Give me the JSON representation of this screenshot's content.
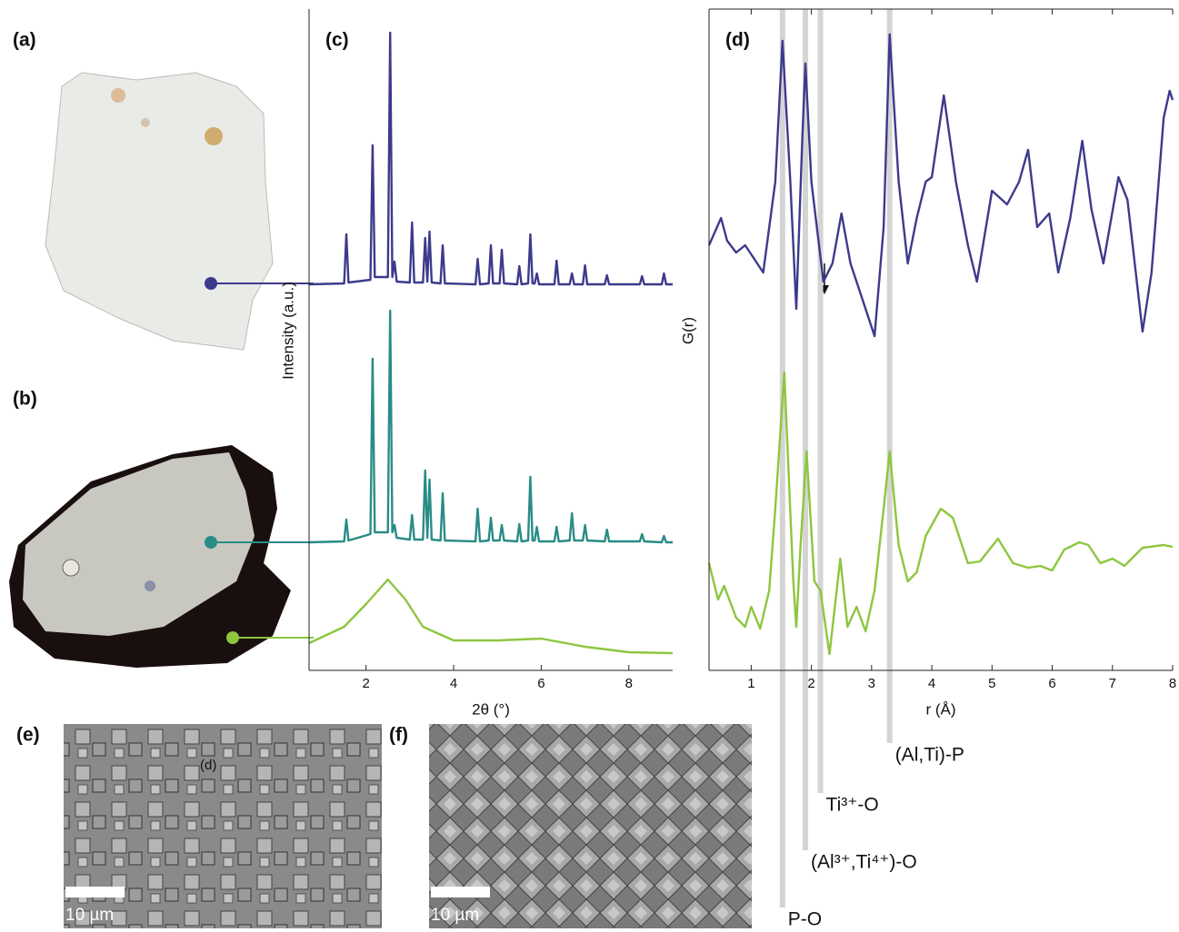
{
  "panel_labels": {
    "a": "(a)",
    "b": "(b)",
    "e": "(e)",
    "f": "(f)"
  },
  "sem": {
    "scale_bar_e": "10 µm",
    "scale_bar_f": "10 µm",
    "overlay_label": "(d)"
  },
  "chart_data": [
    {
      "type": "line",
      "label": "(c)",
      "x_label": "2θ (°)",
      "y_label": "Intensity (a.u.)",
      "xlim": [
        0.7,
        9
      ],
      "ylim": [
        0,
        728
      ],
      "xticks": [
        2,
        4,
        6,
        8
      ],
      "series": [
        {
          "color": "#3d3a8c",
          "x": [
            0.7,
            1.5,
            1.55,
            1.6,
            2.1,
            2.15,
            2.2,
            2.5,
            2.55,
            2.6,
            2.65,
            2.7,
            3.0,
            3.05,
            3.1,
            3.3,
            3.35,
            3.4,
            3.45,
            3.5,
            3.7,
            3.75,
            3.8,
            4.5,
            4.55,
            4.6,
            4.8,
            4.85,
            4.9,
            5.05,
            5.1,
            5.15,
            5.45,
            5.5,
            5.55,
            5.7,
            5.75,
            5.8,
            5.85,
            5.9,
            5.95,
            6.3,
            6.35,
            6.4,
            6.65,
            6.7,
            6.75,
            6.95,
            7.0,
            7.05,
            7.45,
            7.5,
            7.55,
            8.25,
            8.3,
            8.35,
            8.75,
            8.8,
            8.85,
            9.0
          ],
          "values": [
            425,
            426,
            480,
            427,
            430,
            578,
            433,
            433,
            702,
            433,
            450,
            428,
            427,
            493,
            427,
            427,
            476,
            428,
            483,
            427,
            426,
            468,
            426,
            425,
            453,
            425,
            426,
            468,
            426,
            426,
            463,
            426,
            425,
            445,
            425,
            426,
            480,
            426,
            426,
            437,
            425,
            425,
            451,
            425,
            425,
            437,
            425,
            425,
            446,
            425,
            425,
            435,
            425,
            425,
            434,
            425,
            425,
            437,
            425,
            425
          ]
        },
        {
          "color": "#2a8c86",
          "x": [
            0.7,
            1.5,
            1.55,
            1.6,
            2.1,
            2.15,
            2.2,
            2.5,
            2.55,
            2.6,
            2.65,
            2.7,
            3.0,
            3.05,
            3.1,
            3.3,
            3.35,
            3.4,
            3.45,
            3.5,
            3.7,
            3.75,
            3.8,
            4.5,
            4.55,
            4.6,
            4.8,
            4.85,
            4.9,
            5.05,
            5.1,
            5.15,
            5.45,
            5.5,
            5.55,
            5.7,
            5.75,
            5.8,
            5.85,
            5.9,
            5.95,
            6.3,
            6.35,
            6.4,
            6.65,
            6.7,
            6.75,
            6.95,
            7.0,
            7.05,
            7.45,
            7.5,
            7.55,
            8.25,
            8.3,
            8.35,
            8.75,
            8.8,
            8.85,
            9.0
          ],
          "values": [
            141,
            142,
            166,
            143,
            150,
            343,
            152,
            152,
            396,
            152,
            160,
            146,
            144,
            171,
            144,
            144,
            220,
            146,
            210,
            144,
            143,
            195,
            143,
            142,
            178,
            142,
            143,
            168,
            143,
            143,
            160,
            143,
            142,
            161,
            142,
            143,
            213,
            143,
            143,
            158,
            142,
            142,
            158,
            142,
            143,
            173,
            143,
            143,
            160,
            143,
            142,
            155,
            142,
            142,
            150,
            142,
            141,
            148,
            141,
            141
          ]
        },
        {
          "color": "#8dc63f",
          "x": [
            0.7,
            1.5,
            2.0,
            2.5,
            2.9,
            3.3,
            4.0,
            5.0,
            6.0,
            7.0,
            8.0,
            9.0
          ],
          "values": [
            30,
            48,
            73,
            100,
            78,
            48,
            33,
            33,
            35,
            26,
            20,
            19
          ]
        }
      ]
    },
    {
      "type": "line",
      "label": "(d)",
      "x_label": "r (Å)",
      "y_label": "G(r)",
      "xlim": [
        0.3,
        8
      ],
      "ylim": [
        0,
        728
      ],
      "xticks": [
        1,
        2,
        3,
        4,
        5,
        6,
        7,
        8
      ],
      "annotations": [
        {
          "text": "P-O",
          "x": 1.52
        },
        {
          "text": "(Al³⁺,Ti⁴⁺)-O",
          "x": 1.9
        },
        {
          "text": "Ti³⁺-O",
          "x": 2.15
        },
        {
          "text": "(Al,Ti)-P",
          "x": 3.3
        }
      ],
      "series": [
        {
          "color": "#3d3a8c",
          "x": [
            0.3,
            0.5,
            0.6,
            0.75,
            0.9,
            1.0,
            1.2,
            1.4,
            1.52,
            1.65,
            1.75,
            1.85,
            1.9,
            2.0,
            2.2,
            2.35,
            2.5,
            2.65,
            2.8,
            3.05,
            3.2,
            3.3,
            3.45,
            3.6,
            3.75,
            3.9,
            4.0,
            4.2,
            4.4,
            4.6,
            4.75,
            5.0,
            5.25,
            5.45,
            5.6,
            5.75,
            5.95,
            6.1,
            6.3,
            6.5,
            6.65,
            6.85,
            7.1,
            7.25,
            7.5,
            7.65,
            7.85,
            7.95,
            8.0
          ],
          "values": [
            468,
            498,
            473,
            460,
            468,
            458,
            438,
            538,
            693,
            538,
            398,
            588,
            668,
            538,
            428,
            448,
            503,
            448,
            418,
            368,
            488,
            700,
            538,
            448,
            498,
            538,
            543,
            633,
            538,
            468,
            428,
            528,
            513,
            538,
            573,
            488,
            503,
            438,
            498,
            583,
            508,
            448,
            543,
            518,
            373,
            438,
            608,
            638,
            628
          ]
        },
        {
          "color": "#8dc63f",
          "x": [
            0.3,
            0.45,
            0.55,
            0.75,
            0.9,
            1.0,
            1.15,
            1.3,
            1.4,
            1.55,
            1.7,
            1.75,
            1.82,
            1.92,
            2.05,
            2.15,
            2.3,
            2.48,
            2.6,
            2.75,
            2.9,
            3.05,
            3.2,
            3.3,
            3.45,
            3.6,
            3.75,
            3.9,
            4.15,
            4.35,
            4.6,
            4.8,
            5.1,
            5.35,
            5.6,
            5.8,
            6.0,
            6.2,
            6.45,
            6.6,
            6.8,
            7.0,
            7.2,
            7.5,
            7.85,
            8.0
          ],
          "values": [
            118,
            78,
            93,
            58,
            48,
            70,
            46,
            88,
            178,
            328,
            98,
            48,
            138,
            241,
            98,
            88,
            18,
            123,
            48,
            70,
            43,
            88,
            178,
            241,
            138,
            98,
            108,
            148,
            178,
            168,
            118,
            120,
            145,
            118,
            113,
            115,
            110,
            133,
            141,
            138,
            118,
            123,
            115,
            135,
            138,
            136
          ]
        }
      ]
    }
  ]
}
